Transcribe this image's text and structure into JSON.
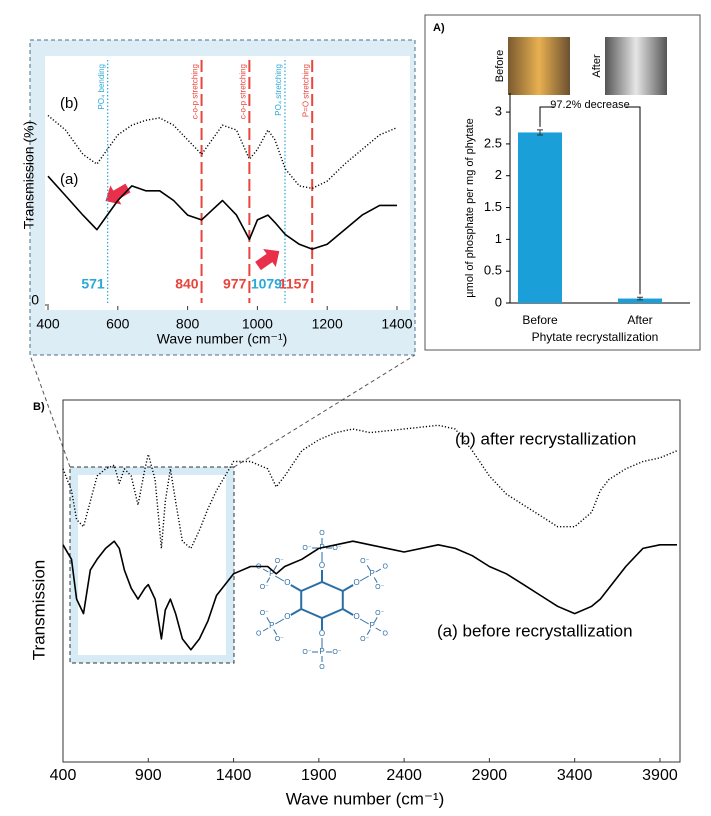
{
  "chart_data": [
    {
      "type": "bar",
      "panel_label": "A)",
      "y_label": "µmol of phosphate per mg of phytate",
      "x_label": "Phytate recrystallization",
      "photo_labels": [
        "Before",
        "After"
      ],
      "annotation": "97.2% decrease",
      "categories": [
        "Before",
        "After"
      ],
      "values": [
        2.68,
        0.07
      ],
      "errors": [
        0.04,
        0.02
      ],
      "color": "#1a9fd8",
      "ylim": [
        0,
        3.3
      ],
      "yticks": [
        0,
        0.5,
        1,
        1.5,
        2,
        2.5,
        3
      ]
    },
    {
      "type": "line",
      "y_label": "Transmission (%)",
      "x_label": "Wave number (cm⁻¹)",
      "xlim": [
        400,
        1400
      ],
      "xticks": [
        400,
        600,
        800,
        1000,
        1200,
        1400
      ],
      "ylim": [
        0,
        100
      ],
      "yticks": [
        0
      ],
      "x": [
        400,
        450,
        500,
        540,
        570,
        600,
        640,
        680,
        720,
        760,
        800,
        840,
        870,
        900,
        940,
        977,
        1000,
        1030,
        1050,
        1080,
        1120,
        1157,
        1200,
        1250,
        1300,
        1350,
        1400
      ],
      "series": [
        {
          "name": "(b)",
          "color": "#000000",
          "style": "dotted",
          "values": [
            78,
            72,
            62,
            58,
            64,
            70,
            74,
            76,
            77,
            74,
            68,
            62,
            68,
            74,
            72,
            60,
            64,
            72,
            68,
            56,
            49,
            48,
            51,
            58,
            64,
            70,
            73
          ]
        },
        {
          "name": "(a)",
          "color": "#000000",
          "style": "solid",
          "values": [
            53,
            45,
            37,
            31,
            37,
            43,
            49,
            47,
            47,
            43,
            37,
            35,
            39,
            43,
            37,
            27,
            35,
            37,
            34,
            29,
            25,
            23,
            25,
            31,
            37,
            41,
            41
          ]
        }
      ],
      "markers": [
        {
          "value": 571,
          "label": "571",
          "note": "PO₄ bending",
          "color": "#29a9d9",
          "style": "dotted"
        },
        {
          "value": 840,
          "label": "840",
          "note": "c-o-p stretching",
          "color": "#e8453c",
          "style": "dashed"
        },
        {
          "value": 977,
          "label": "977",
          "note": "c-o-p stretching",
          "color": "#e8453c",
          "style": "dashed"
        },
        {
          "value": 1079,
          "label": "1079",
          "note": "PO₄ stretching",
          "color": "#29a9d9",
          "style": "dotted"
        },
        {
          "value": 1157,
          "label": "1157",
          "note": "P=O stretching",
          "color": "#e8453c",
          "style": "dashed"
        }
      ]
    },
    {
      "type": "line",
      "panel_label": "B)",
      "y_label": "Transmission",
      "x_label": "Wave number (cm⁻¹)",
      "xlim": [
        400,
        4000
      ],
      "xticks": [
        400,
        900,
        1400,
        1900,
        2400,
        2900,
        3400,
        3900
      ],
      "ylim": [
        0,
        100
      ],
      "x": [
        400,
        450,
        480,
        520,
        560,
        600,
        650,
        700,
        730,
        760,
        800,
        840,
        880,
        900,
        940,
        977,
        1000,
        1030,
        1060,
        1100,
        1150,
        1200,
        1250,
        1300,
        1400,
        1500,
        1600,
        1650,
        1700,
        1800,
        1900,
        2000,
        2100,
        2200,
        2400,
        2600,
        2700,
        2800,
        2900,
        3000,
        3100,
        3200,
        3300,
        3400,
        3500,
        3550,
        3600,
        3700,
        3800,
        3900,
        4000
      ],
      "series": [
        {
          "name": "(b) after recrystallization",
          "color": "#000000",
          "style": "dotted",
          "values": [
            81,
            75,
            67,
            65,
            72,
            79,
            81,
            82,
            77,
            81,
            79,
            71,
            81,
            85,
            78,
            59,
            72,
            81,
            72,
            61,
            59,
            64,
            70,
            75,
            83,
            83,
            81,
            76,
            79,
            86,
            89,
            91,
            92,
            91,
            92,
            93,
            92,
            86,
            79,
            74,
            71,
            68,
            65,
            65,
            69,
            75,
            78,
            81,
            83,
            84,
            86
          ]
        },
        {
          "name": "(a) before recrystallization",
          "color": "#000000",
          "style": "solid",
          "values": [
            60,
            56,
            45,
            41,
            53,
            56,
            59,
            61,
            59,
            53,
            48,
            45,
            48,
            49,
            45,
            34,
            42,
            45,
            41,
            34,
            31,
            34,
            39,
            46,
            52,
            54,
            54,
            52,
            54,
            56,
            59,
            60,
            61,
            60,
            58,
            60,
            59,
            57,
            54,
            52,
            49,
            46,
            43,
            41,
            43,
            45,
            48,
            54,
            59,
            60,
            60
          ]
        }
      ],
      "structure": {
        "phosphorus": "P",
        "oxygen": "O",
        "anion": "O⁻"
      }
    }
  ]
}
